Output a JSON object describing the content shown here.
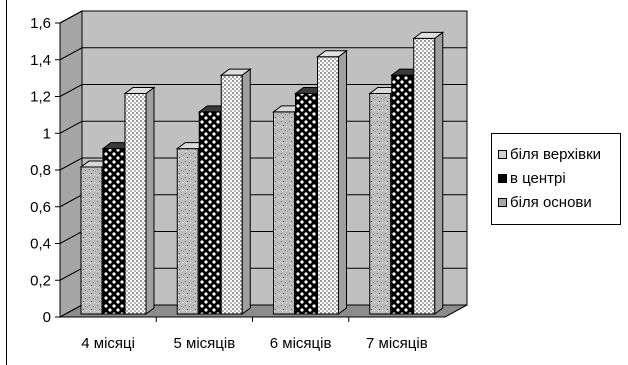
{
  "chart_data": {
    "type": "bar",
    "categories": [
      "4 місяці",
      "5 місяців",
      "6 місяців",
      "7 місяців"
    ],
    "series": [
      {
        "name": "біля верхівки",
        "values": [
          0.8,
          0.9,
          1.1,
          1.2
        ]
      },
      {
        "name": "в центрі",
        "values": [
          0.9,
          1.1,
          1.2,
          1.3
        ]
      },
      {
        "name": "біля основи",
        "values": [
          1.2,
          1.3,
          1.4,
          1.5
        ]
      }
    ],
    "ylim": [
      0,
      1.6
    ],
    "yticks": [
      "0",
      "0,2",
      "0,4",
      "0,6",
      "0,8",
      "1",
      "1,2",
      "1,4",
      "1,6"
    ],
    "grid": true,
    "three_d": true,
    "legend_position": "right",
    "colors": {
      "wall": "#c0c0c0",
      "floor": "#8c8c8c",
      "grid": "#000000"
    }
  }
}
